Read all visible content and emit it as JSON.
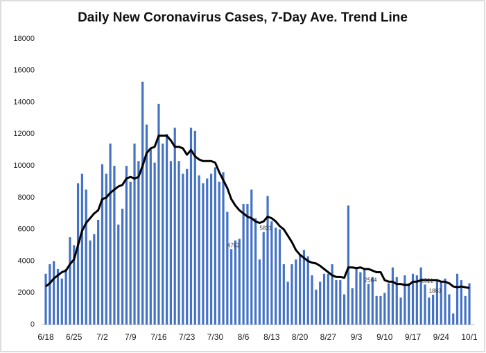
{
  "chart_data": {
    "type": "bar-line",
    "title": "Daily New Coronavirus Cases, 7-Day Ave. Trend Line",
    "categories": [
      "6/18",
      null,
      null,
      null,
      null,
      null,
      null,
      "6/25",
      null,
      null,
      null,
      null,
      null,
      null,
      "7/2",
      null,
      null,
      null,
      null,
      null,
      null,
      "7/9",
      null,
      null,
      null,
      null,
      null,
      null,
      "7/16",
      null,
      null,
      null,
      null,
      null,
      null,
      "7/23",
      null,
      null,
      null,
      null,
      null,
      null,
      "7/30",
      null,
      null,
      null,
      null,
      null,
      null,
      "8/6",
      null,
      null,
      null,
      null,
      null,
      null,
      "8/13",
      null,
      null,
      null,
      null,
      null,
      null,
      "8/20",
      null,
      null,
      null,
      null,
      null,
      null,
      "8/27",
      null,
      null,
      null,
      null,
      null,
      null,
      "9/3",
      null,
      null,
      null,
      null,
      null,
      null,
      "9/10",
      null,
      null,
      null,
      null,
      null,
      null,
      "9/17",
      null,
      null,
      null,
      null,
      null,
      null,
      "9/24",
      null,
      null,
      null,
      null,
      null,
      null,
      "10/1"
    ],
    "series": [
      {
        "type": "bar",
        "color": "#4472c4",
        "values": [
          3200,
          3800,
          4000,
          3500,
          2900,
          3500,
          5500,
          5000,
          8900,
          9500,
          8500,
          5300,
          5700,
          6600,
          10100,
          9500,
          11400,
          10000,
          6300,
          7300,
          10000,
          9000,
          11400,
          10300,
          15300,
          12600,
          11100,
          10200,
          13900,
          11400,
          12000,
          10300,
          12400,
          10300,
          9500,
          9800,
          12400,
          12200,
          9400,
          8900,
          9200,
          9500,
          9900,
          9000,
          9600,
          7100,
          4753,
          5300,
          5400,
          7600,
          7600,
          8500,
          6700,
          4100,
          5831,
          8100,
          6500,
          6100,
          6000,
          3800,
          2700,
          3800,
          4100,
          4400,
          4700,
          4300,
          3100,
          2200,
          2700,
          3200,
          3200,
          3800,
          2800,
          2800,
          1900,
          7500,
          2300,
          3600,
          3300,
          3500,
          2564,
          3000,
          1800,
          1800,
          2000,
          2600,
          3600,
          3000,
          1700,
          3100,
          2600,
          3200,
          3100,
          3600,
          2521,
          1700,
          1883,
          2800,
          2700,
          2900,
          1900,
          700,
          3200,
          2800,
          1800,
          2600
        ],
        "value_labels": {
          "46": "4753",
          "54": "5831",
          "80": "2564",
          "94": "2521",
          "96": "1883"
        }
      },
      {
        "type": "line",
        "color": "#000000",
        "values": [
          2400,
          2600,
          2900,
          3100,
          3300,
          3400,
          3800,
          4100,
          5000,
          5900,
          6400,
          6700,
          7000,
          7200,
          7900,
          8000,
          8300,
          8500,
          8700,
          8800,
          9200,
          9300,
          9200,
          9300,
          10000,
          10800,
          11100,
          11200,
          11900,
          11900,
          11900,
          11600,
          11200,
          11200,
          11100,
          10700,
          11000,
          10600,
          10400,
          10300,
          10300,
          10300,
          10200,
          9600,
          9100,
          8600,
          7900,
          7500,
          7200,
          7000,
          6800,
          6700,
          6500,
          6400,
          6500,
          6800,
          6700,
          6500,
          6200,
          6000,
          5600,
          5200,
          4700,
          4400,
          4200,
          4000,
          3900,
          3850,
          3700,
          3500,
          3300,
          3100,
          3000,
          3000,
          2950,
          3600,
          3600,
          3550,
          3600,
          3500,
          3500,
          3400,
          3300,
          3300,
          2800,
          2700,
          2700,
          2550,
          2550,
          2500,
          2500,
          2700,
          2700,
          2800,
          2800,
          2800,
          2800,
          2800,
          2700,
          2700,
          2600,
          2400,
          2350,
          2400,
          2350,
          2300
        ]
      }
    ],
    "ylim": [
      0,
      18000
    ],
    "yticks": [
      0,
      2000,
      4000,
      6000,
      8000,
      10000,
      12000,
      14000,
      16000,
      18000
    ],
    "grid": false
  }
}
